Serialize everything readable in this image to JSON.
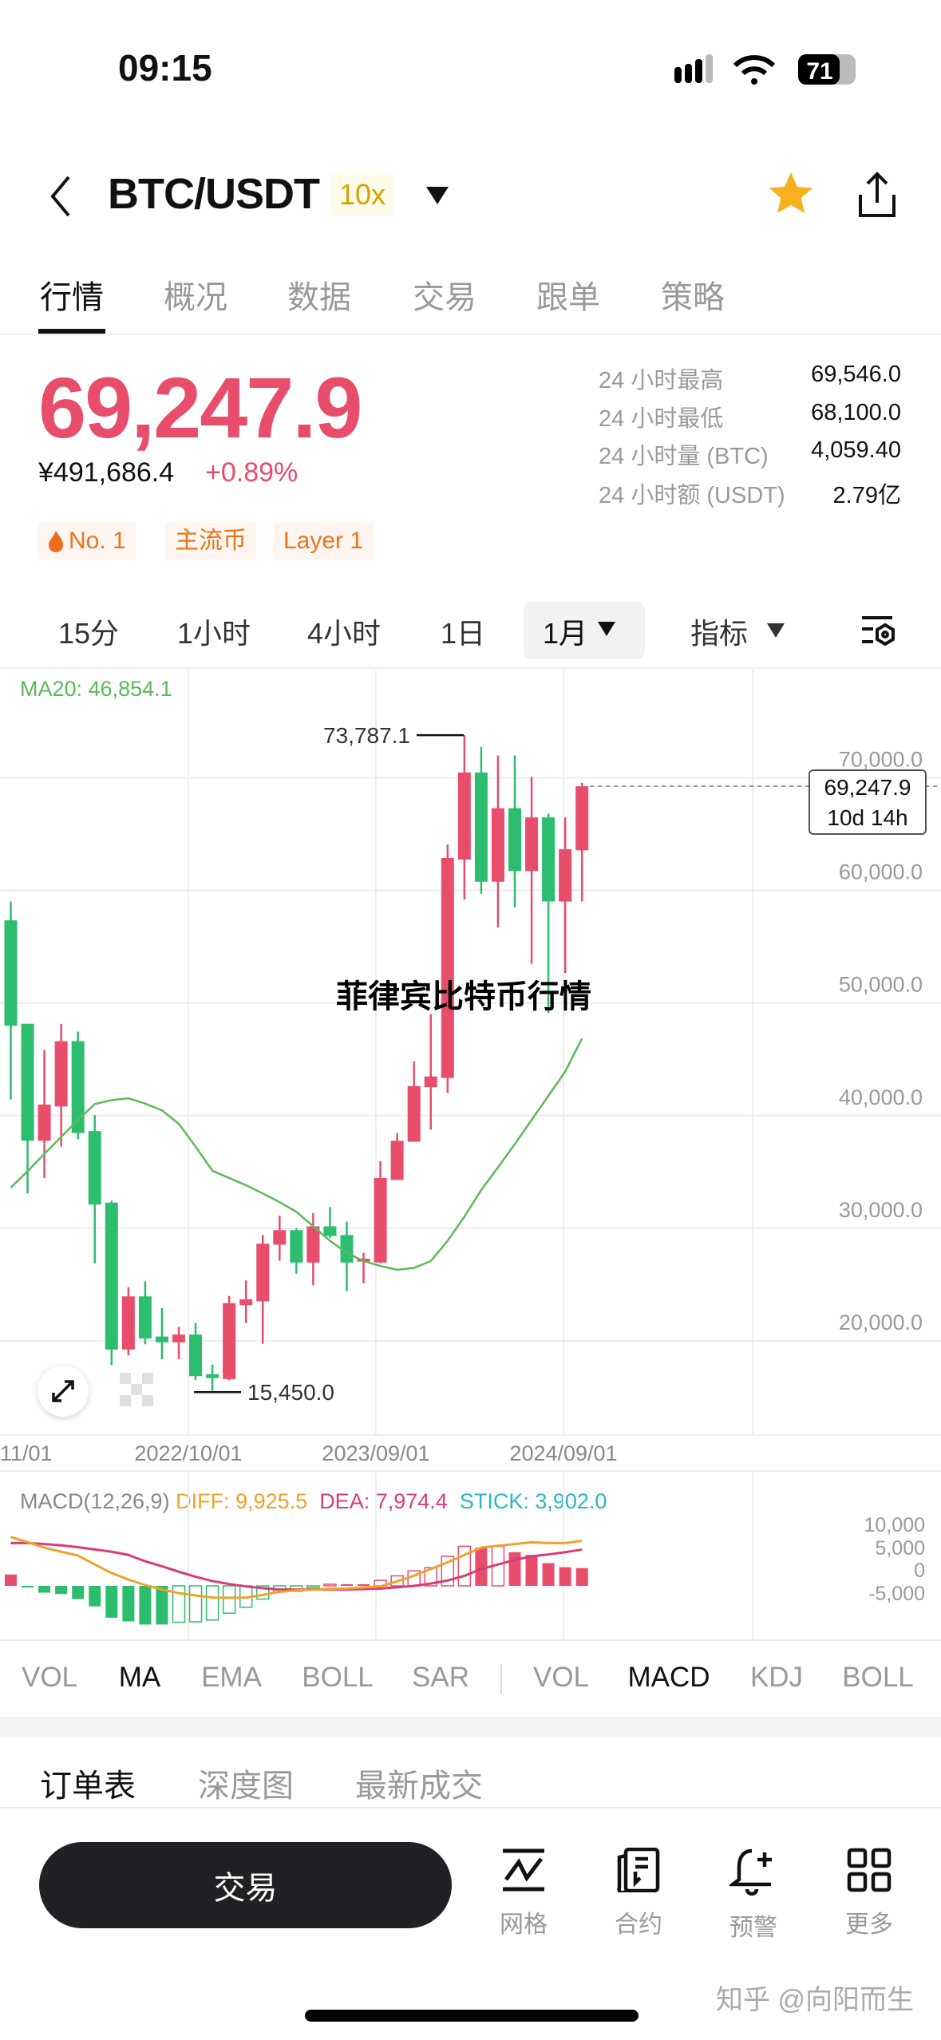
{
  "status_bar": {
    "time": "09:15",
    "battery": "71"
  },
  "header": {
    "title": "BTC/USDT",
    "leverage": "10x",
    "favorited": true,
    "star_color": "#f7b01e"
  },
  "tabs": [
    {
      "label": "行情",
      "active": true
    },
    {
      "label": "概况"
    },
    {
      "label": "数据"
    },
    {
      "label": "交易"
    },
    {
      "label": "跟单"
    },
    {
      "label": "策略"
    }
  ],
  "ticker": {
    "last_price": "69,247.9",
    "cny_price": "¥491,686.4",
    "change": "+0.89%",
    "up_color": "#e84d6c",
    "down_color": "#2dbd6e",
    "stats": [
      {
        "label": "24 小时最高",
        "value": "69,546.0"
      },
      {
        "label": "24 小时最低",
        "value": "68,100.0"
      },
      {
        "label": "24 小时量 (BTC)",
        "value": "4,059.40"
      },
      {
        "label": "24 小时额 (USDT)",
        "value": "2.79亿"
      }
    ],
    "tags": [
      "No. 1",
      "主流币",
      "Layer 1"
    ]
  },
  "timeframes": {
    "items": [
      "15分",
      "1小时",
      "4小时",
      "1日"
    ],
    "selected": "1月",
    "indicator_label": "指标"
  },
  "overlay_caption": "菲律宾比特币行情",
  "chart_logo": "欧易",
  "chart_data": {
    "type": "candlestick",
    "interval": "1M",
    "ma_label": "MA20: 46,854.1",
    "y_ticks": [
      "70,000.0",
      "60,000.0",
      "50,000.0",
      "40,000.0",
      "30,000.0",
      "20,000.0"
    ],
    "y_tick_values": [
      70000,
      60000,
      50000,
      40000,
      30000,
      20000
    ],
    "x_labels": [
      "11/01",
      "2022/10/01",
      "2023/09/01",
      "2024/09/01"
    ],
    "x_label_index": [
      1,
      12,
      23,
      34
    ],
    "high_marker": "73,787.1",
    "low_marker": "15,450.0",
    "last_price_tag": "69,247.9",
    "countdown": "10d 14h",
    "ohlc": [
      [
        57340,
        59010,
        41420,
        47980
      ],
      [
        48155,
        48155,
        33089,
        37768
      ],
      [
        37768,
        45836,
        34462,
        40986
      ],
      [
        40814,
        48155,
        37253,
        46609
      ],
      [
        46609,
        47467,
        37897,
        38454
      ],
      [
        38626,
        40041,
        26865,
        32102
      ],
      [
        32273,
        32445,
        17853,
        19226
      ],
      [
        19226,
        24762,
        18711,
        23947
      ],
      [
        23947,
        25278,
        19697,
        20213
      ],
      [
        20385,
        22916,
        18367,
        19869
      ],
      [
        19869,
        21242,
        18367,
        20557
      ],
      [
        20557,
        21586,
        16522,
        16865
      ],
      [
        17037,
        17896,
        15450,
        16694
      ],
      [
        16608,
        23990,
        16500,
        23346
      ],
      [
        23174,
        25364,
        21586,
        23689
      ],
      [
        23518,
        29397,
        19740,
        28625
      ],
      [
        28539,
        31114,
        27122,
        29827
      ],
      [
        29827,
        30000,
        25965,
        26951
      ],
      [
        26951,
        31329,
        24934,
        30170
      ],
      [
        30170,
        31887,
        29140,
        29311
      ],
      [
        29397,
        30599,
        24419,
        26951
      ],
      [
        27037,
        27809,
        25106,
        27294
      ],
      [
        26951,
        35964,
        26900,
        34462
      ],
      [
        34290,
        38454,
        34290,
        37768
      ],
      [
        37682,
        44806,
        37682,
        42617
      ],
      [
        42531,
        49012,
        38754,
        43475
      ],
      [
        43346,
        64077,
        42016,
        62875
      ],
      [
        62746,
        73787.1,
        59184,
        70472
      ],
      [
        70472,
        72747,
        59699,
        60772
      ],
      [
        60772,
        71974,
        56695,
        67296
      ],
      [
        67296,
        71974,
        58497,
        61716
      ],
      [
        61716,
        70086,
        53476,
        66481
      ],
      [
        66481,
        66824,
        49098,
        59012
      ],
      [
        59012,
        66481,
        52660,
        63648
      ],
      [
        63562,
        69546,
        59012,
        69247.9
      ]
    ],
    "ma20": [
      33604,
      35064,
      36608,
      38110,
      39612,
      41030,
      41372,
      41545,
      41072,
      40471,
      39268,
      37253,
      35107,
      34462,
      33819,
      33089,
      32316,
      31458,
      30170,
      28883,
      27810,
      27080,
      26651,
      26307,
      26479,
      27080,
      28883,
      31029,
      33390,
      35406,
      37467,
      39612,
      41760,
      43905,
      46854.1
    ],
    "ma_color": "#5cb85c",
    "macd": {
      "label": "MACD(12,26,9)",
      "diff_label": "DIFF: 9,925.5",
      "dea_label": "DEA: 7,974.4",
      "stick_label": "STICK: 3,902.0",
      "diff_color": "#f0a12c",
      "dea_color": "#d63d78",
      "stick_color": "#2bb5c4",
      "y_ticks": [
        "10,000",
        "5,000",
        "0",
        "-5,000"
      ],
      "diff": [
        10760,
        9600,
        8410,
        7500,
        6650,
        4700,
        2820,
        1400,
        176,
        -800,
        -1590,
        -2100,
        -2590,
        -2600,
        -2590,
        -2000,
        -1290,
        -1000,
        -820,
        -700,
        -590,
        -350,
        -120,
        1000,
        2240,
        3700,
        5180,
        6800,
        8410,
        8820,
        9180,
        9590,
        9410,
        9410,
        9925.5
      ],
      "dea": [
        9410,
        9410,
        9200,
        8900,
        8500,
        8000,
        7500,
        6800,
        5400,
        4300,
        3100,
        2000,
        1060,
        400,
        -120,
        -500,
        -820,
        -820,
        -820,
        -820,
        -820,
        -700,
        -590,
        -300,
        0,
        500,
        1180,
        2200,
        3700,
        4700,
        5700,
        6500,
        6900,
        7400,
        7974.4
      ],
      "stick": [
        2500,
        -100,
        -1500,
        -1800,
        -2900,
        -4500,
        -7000,
        -7800,
        -8500,
        -8500,
        -8000,
        -7900,
        -7500,
        -6000,
        -4700,
        -2900,
        -1300,
        -1200,
        -400,
        350,
        350,
        350,
        1200,
        2200,
        3300,
        4000,
        6500,
        8700,
        8400,
        8700,
        7400,
        6800,
        5000,
        4100,
        3902
      ]
    }
  },
  "indicators": {
    "main": [
      {
        "label": "VOL"
      },
      {
        "label": "MA",
        "active": true
      },
      {
        "label": "EMA"
      },
      {
        "label": "BOLL"
      },
      {
        "label": "SAR"
      }
    ],
    "sub": [
      {
        "label": "VOL"
      },
      {
        "label": "MACD",
        "active": true
      },
      {
        "label": "KDJ"
      },
      {
        "label": "BOLL"
      }
    ]
  },
  "order_tabs": [
    {
      "label": "订单表",
      "active": true
    },
    {
      "label": "深度图"
    },
    {
      "label": "最新成交"
    }
  ],
  "bottom_bar": {
    "trade_label": "交易",
    "items": [
      {
        "label": "网格",
        "icon": "grid-bot-icon"
      },
      {
        "label": "合约",
        "icon": "contract-icon"
      },
      {
        "label": "预警",
        "icon": "alert-bell-icon"
      },
      {
        "label": "更多",
        "icon": "more-apps-icon"
      }
    ]
  },
  "watermark": "知乎 @向阳而生"
}
